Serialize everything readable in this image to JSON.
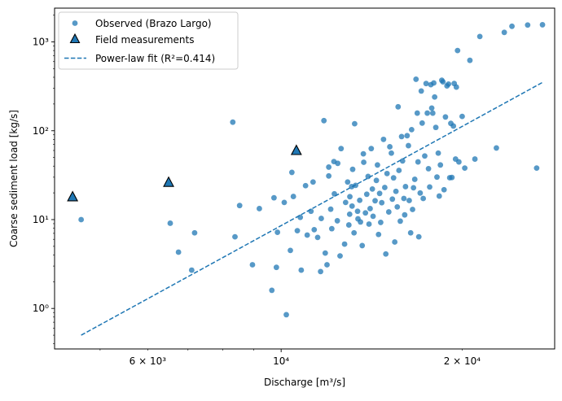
{
  "chart_data": {
    "type": "scatter",
    "title": "",
    "xlabel": "Discharge [m³/s]",
    "ylabel": "Coarse sediment load [kg/s]",
    "xscale": "log",
    "yscale": "log",
    "xlim": [
      4200,
      28500
    ],
    "ylim": [
      0.35,
      2400
    ],
    "grid": false,
    "legend_position": "top-left",
    "x_ticks": [
      {
        "value": 6000,
        "label": "6 × 10³"
      },
      {
        "value": 10000,
        "label": "10⁴"
      },
      {
        "value": 20000,
        "label": "2 × 10⁴"
      }
    ],
    "y_ticks": [
      {
        "value": 1,
        "label": "10⁰"
      },
      {
        "value": 10,
        "label": "10¹"
      },
      {
        "value": 100,
        "label": "10²"
      },
      {
        "value": 1000,
        "label": "10³"
      }
    ],
    "legend": [
      {
        "label": "Observed (Brazo Largo)",
        "marker": "circle"
      },
      {
        "label": "Field measurements",
        "marker": "triangle"
      },
      {
        "label": "Power-law fit (R²=0.414)",
        "marker": "dashed-line"
      }
    ],
    "colors": {
      "observed": "#1f77b4",
      "field": "#1f77b4",
      "fit": "#1f77b4",
      "axes": "#000000"
    },
    "series": [
      {
        "name": "Observed (Brazo Largo)",
        "type": "scatter",
        "points": [
          [
            4650,
            10
          ],
          [
            6540,
            9.1
          ],
          [
            6750,
            4.3
          ],
          [
            7180,
            7.1
          ],
          [
            7100,
            2.7
          ],
          [
            8310,
            125
          ],
          [
            8380,
            6.4
          ],
          [
            8530,
            14.4
          ],
          [
            8960,
            3.1
          ],
          [
            9200,
            13.3
          ],
          [
            9650,
            1.6
          ],
          [
            9730,
            17.6
          ],
          [
            9820,
            2.9
          ],
          [
            9860,
            7.2
          ],
          [
            10120,
            15.6
          ],
          [
            10200,
            0.85
          ],
          [
            10420,
            34
          ],
          [
            10360,
            4.5
          ],
          [
            10480,
            18.2
          ],
          [
            10640,
            7.5
          ],
          [
            10760,
            10.6
          ],
          [
            10800,
            2.7
          ],
          [
            10980,
            24.1
          ],
          [
            11050,
            6.7
          ],
          [
            11210,
            12.4
          ],
          [
            11300,
            26.5
          ],
          [
            11350,
            7.7
          ],
          [
            11500,
            6.3
          ],
          [
            11630,
            2.6
          ],
          [
            11660,
            10.3
          ],
          [
            11780,
            130
          ],
          [
            11840,
            4.2
          ],
          [
            11920,
            3.1
          ],
          [
            12000,
            39
          ],
          [
            12000,
            31
          ],
          [
            12090,
            13.1
          ],
          [
            12140,
            7.9
          ],
          [
            12240,
            45
          ],
          [
            12260,
            19.5
          ],
          [
            12400,
            9.7
          ],
          [
            12420,
            43
          ],
          [
            12530,
            3.9
          ],
          [
            12580,
            63
          ],
          [
            12750,
            5.3
          ],
          [
            12800,
            15.6
          ],
          [
            12900,
            26.5
          ],
          [
            12960,
            8.7
          ],
          [
            13000,
            11.5
          ],
          [
            13010,
            18.1
          ],
          [
            13100,
            23.5
          ],
          [
            13120,
            14.2
          ],
          [
            13150,
            36.8
          ],
          [
            13220,
            7.1
          ],
          [
            13250,
            120
          ],
          [
            13300,
            24.3
          ],
          [
            13400,
            12.4
          ],
          [
            13420,
            10.2
          ],
          [
            13510,
            16.5
          ],
          [
            13550,
            9.4
          ],
          [
            13640,
            5.1
          ],
          [
            13700,
            55
          ],
          [
            13720,
            44.2
          ],
          [
            13810,
            11.9
          ],
          [
            13880,
            19.3
          ],
          [
            13950,
            30.6
          ],
          [
            14000,
            8.9
          ],
          [
            14060,
            13.3
          ],
          [
            14120,
            63
          ],
          [
            14180,
            22.1
          ],
          [
            14220,
            10.9
          ],
          [
            14330,
            16.3
          ],
          [
            14400,
            27.6
          ],
          [
            14460,
            41.2
          ],
          [
            14520,
            6.8
          ],
          [
            14580,
            19.7
          ],
          [
            14640,
            9.3
          ],
          [
            14700,
            15.5
          ],
          [
            14800,
            80
          ],
          [
            14870,
            23
          ],
          [
            14930,
            4.1
          ],
          [
            15000,
            33
          ],
          [
            15100,
            12.2
          ],
          [
            15160,
            66
          ],
          [
            15250,
            56
          ],
          [
            15310,
            17
          ],
          [
            15380,
            29.5
          ],
          [
            15450,
            5.6
          ],
          [
            15520,
            20.8
          ],
          [
            15600,
            13.9
          ],
          [
            15650,
            186
          ],
          [
            15700,
            35.8
          ],
          [
            15780,
            9.6
          ],
          [
            15860,
            86
          ],
          [
            15920,
            45.7
          ],
          [
            16000,
            17.3
          ],
          [
            16050,
            11.3
          ],
          [
            16100,
            23.5
          ],
          [
            16200,
            88
          ],
          [
            16280,
            68
          ],
          [
            16330,
            16.4
          ],
          [
            16420,
            7.1
          ],
          [
            16480,
            103
          ],
          [
            16540,
            13
          ],
          [
            16600,
            22.8
          ],
          [
            16680,
            28.4
          ],
          [
            16760,
            380
          ],
          [
            16840,
            158
          ],
          [
            16890,
            44.6
          ],
          [
            16940,
            6.4
          ],
          [
            17030,
            19.9
          ],
          [
            17100,
            280
          ],
          [
            17160,
            122
          ],
          [
            17230,
            17.3
          ],
          [
            17330,
            52
          ],
          [
            17420,
            340
          ],
          [
            17500,
            158
          ],
          [
            17580,
            37.4
          ],
          [
            17660,
            23.3
          ],
          [
            17740,
            330
          ],
          [
            17800,
            180
          ],
          [
            17870,
            158
          ],
          [
            17940,
            345
          ],
          [
            18000,
            240
          ],
          [
            18080,
            109
          ],
          [
            18160,
            30.1
          ],
          [
            18250,
            56
          ],
          [
            18320,
            18.4
          ],
          [
            18400,
            41.2
          ],
          [
            18500,
            370
          ],
          [
            18580,
            355
          ],
          [
            18660,
            21.7
          ],
          [
            18760,
            143
          ],
          [
            18870,
            320
          ],
          [
            18980,
            335
          ],
          [
            19070,
            29.6
          ],
          [
            19150,
            121
          ],
          [
            19230,
            29.8
          ],
          [
            19340,
            113
          ],
          [
            19400,
            340
          ],
          [
            19500,
            48
          ],
          [
            19560,
            310
          ],
          [
            19650,
            800
          ],
          [
            19750,
            44.6
          ],
          [
            20000,
            145
          ],
          [
            20200,
            38
          ],
          [
            20600,
            620
          ],
          [
            21000,
            48
          ],
          [
            21400,
            1150
          ],
          [
            22800,
            64
          ],
          [
            23500,
            1280
          ],
          [
            24200,
            1500
          ],
          [
            25700,
            1550
          ],
          [
            27200,
            1560
          ],
          [
            26600,
            38
          ]
        ]
      },
      {
        "name": "Field measurements",
        "type": "scatter",
        "points": [
          [
            4500,
            18.2
          ],
          [
            6500,
            26.5
          ],
          [
            10600,
            60.5
          ]
        ]
      },
      {
        "name": "Power-law fit (R²=0.414)",
        "type": "line",
        "points": [
          [
            4650,
            0.5
          ],
          [
            27200,
            350
          ]
        ]
      }
    ]
  }
}
